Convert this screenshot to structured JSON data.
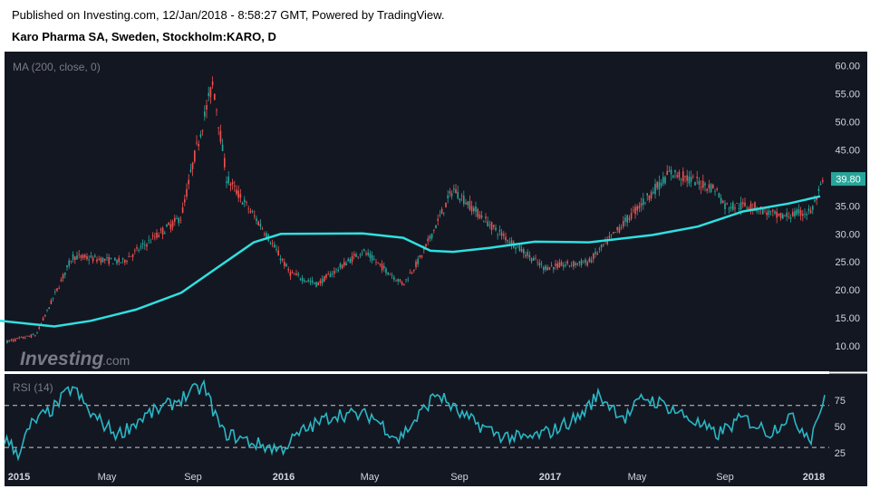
{
  "header": {
    "published": "Published on Investing.com, 12/Jan/2018 - 8:58:27 GMT, Powered by TradingView.",
    "instrument": "Karo Pharma SA, Sweden, Stockholm:KARO, D"
  },
  "watermark": {
    "brand": "Investing",
    "suffix": ".com"
  },
  "chart_data": [
    {
      "type": "candlestick",
      "indicator_label": "MA (200, close, 0)",
      "x_ticks": [
        "2015",
        "May",
        "Sep",
        "2016",
        "May",
        "Sep",
        "2017",
        "May",
        "Sep",
        "2018"
      ],
      "y_ticks": [
        "60.00",
        "55.00",
        "50.00",
        "45.00",
        "40.00",
        "35.00",
        "30.00",
        "25.00",
        "20.00",
        "15.00",
        "10.00"
      ],
      "ylim": [
        5.5,
        62.5
      ],
      "last_price": "39.80",
      "grid": false,
      "colors": {
        "up": "#26a69a",
        "down": "#ef5350",
        "ma": "#2fe0e0",
        "background": "#131722",
        "last_price_tag": "#26a69a"
      },
      "price_path": [
        {
          "x": 0,
          "y": 10.5
        },
        {
          "x": 40,
          "y": 12
        },
        {
          "x": 80,
          "y": 26
        },
        {
          "x": 135,
          "y": 25
        },
        {
          "x": 200,
          "y": 33
        },
        {
          "x": 215,
          "y": 44
        },
        {
          "x": 235,
          "y": 57
        },
        {
          "x": 250,
          "y": 40
        },
        {
          "x": 290,
          "y": 31
        },
        {
          "x": 320,
          "y": 23
        },
        {
          "x": 350,
          "y": 21
        },
        {
          "x": 400,
          "y": 27
        },
        {
          "x": 445,
          "y": 21
        },
        {
          "x": 465,
          "y": 26
        },
        {
          "x": 500,
          "y": 38
        },
        {
          "x": 545,
          "y": 31
        },
        {
          "x": 600,
          "y": 24
        },
        {
          "x": 650,
          "y": 25
        },
        {
          "x": 700,
          "y": 34
        },
        {
          "x": 740,
          "y": 41
        },
        {
          "x": 790,
          "y": 38
        },
        {
          "x": 800,
          "y": 35
        },
        {
          "x": 830,
          "y": 35
        },
        {
          "x": 860,
          "y": 33
        },
        {
          "x": 895,
          "y": 34
        },
        {
          "x": 910,
          "y": 39.8
        }
      ],
      "ma_path": [
        {
          "x": 0,
          "y": 14.5
        },
        {
          "x": 60,
          "y": 13.5
        },
        {
          "x": 100,
          "y": 14.5
        },
        {
          "x": 150,
          "y": 16.5
        },
        {
          "x": 200,
          "y": 19.5
        },
        {
          "x": 240,
          "y": 24
        },
        {
          "x": 280,
          "y": 28.5
        },
        {
          "x": 310,
          "y": 30
        },
        {
          "x": 400,
          "y": 30.1
        },
        {
          "x": 445,
          "y": 29.3
        },
        {
          "x": 475,
          "y": 27
        },
        {
          "x": 500,
          "y": 26.8
        },
        {
          "x": 540,
          "y": 27.5
        },
        {
          "x": 590,
          "y": 28.6
        },
        {
          "x": 650,
          "y": 28.5
        },
        {
          "x": 720,
          "y": 29.8
        },
        {
          "x": 770,
          "y": 31.3
        },
        {
          "x": 820,
          "y": 34
        },
        {
          "x": 870,
          "y": 35.4
        },
        {
          "x": 905,
          "y": 36.7
        }
      ]
    },
    {
      "type": "line",
      "indicator_label": "RSI (14)",
      "y_ticks": [
        "75",
        "50",
        "25"
      ],
      "ylim": [
        12,
        100
      ],
      "reference_lines": [
        70,
        30
      ],
      "colors": {
        "line": "#2ab7c4",
        "reference": "#cccccc"
      },
      "rsi_path": [
        {
          "x": 5,
          "y": 38
        },
        {
          "x": 20,
          "y": 25
        },
        {
          "x": 35,
          "y": 52
        },
        {
          "x": 60,
          "y": 68
        },
        {
          "x": 80,
          "y": 88
        },
        {
          "x": 100,
          "y": 62
        },
        {
          "x": 130,
          "y": 42
        },
        {
          "x": 160,
          "y": 60
        },
        {
          "x": 190,
          "y": 72
        },
        {
          "x": 210,
          "y": 82
        },
        {
          "x": 225,
          "y": 88
        },
        {
          "x": 245,
          "y": 45
        },
        {
          "x": 280,
          "y": 34
        },
        {
          "x": 310,
          "y": 28
        },
        {
          "x": 335,
          "y": 46
        },
        {
          "x": 370,
          "y": 62
        },
        {
          "x": 410,
          "y": 60
        },
        {
          "x": 440,
          "y": 38
        },
        {
          "x": 460,
          "y": 58
        },
        {
          "x": 482,
          "y": 82
        },
        {
          "x": 510,
          "y": 60
        },
        {
          "x": 550,
          "y": 42
        },
        {
          "x": 580,
          "y": 38
        },
        {
          "x": 610,
          "y": 46
        },
        {
          "x": 640,
          "y": 60
        },
        {
          "x": 660,
          "y": 80
        },
        {
          "x": 690,
          "y": 58
        },
        {
          "x": 710,
          "y": 78
        },
        {
          "x": 735,
          "y": 70
        },
        {
          "x": 760,
          "y": 58
        },
        {
          "x": 790,
          "y": 42
        },
        {
          "x": 820,
          "y": 58
        },
        {
          "x": 850,
          "y": 44
        },
        {
          "x": 870,
          "y": 60
        },
        {
          "x": 895,
          "y": 40
        },
        {
          "x": 903,
          "y": 63
        },
        {
          "x": 910,
          "y": 74
        }
      ]
    }
  ]
}
